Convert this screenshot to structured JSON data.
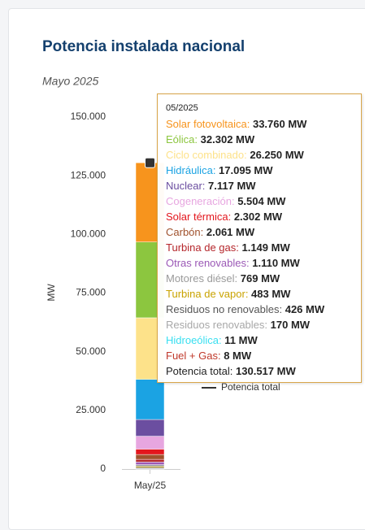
{
  "chart_data": {
    "type": "stacked_bar",
    "title": "Potencia instalada nacional",
    "subtitle": "Mayo 2025",
    "y_label": "MW",
    "categories": [
      "May/25"
    ],
    "tooltip_header": "05/2025",
    "ylim": [
      0,
      150000
    ],
    "yticks": [
      {
        "value": 0,
        "label": "0"
      },
      {
        "value": 25000,
        "label": "25.000"
      },
      {
        "value": 50000,
        "label": "50.000"
      },
      {
        "value": 75000,
        "label": "75.000"
      },
      {
        "value": 100000,
        "label": "100.000"
      },
      {
        "value": 125000,
        "label": "125.000"
      },
      {
        "value": 150000,
        "label": "150.000"
      }
    ],
    "series": [
      {
        "name": "Solar fotovoltaica",
        "color": "#f7941d",
        "values": [
          33760
        ],
        "value_labels": [
          "33.760 MW"
        ]
      },
      {
        "name": "Eólica",
        "color": "#8cc63f",
        "values": [
          32302
        ],
        "value_labels": [
          "32.302 MW"
        ]
      },
      {
        "name": "Ciclo combinado",
        "color": "#fde28a",
        "values": [
          26250
        ],
        "value_labels": [
          "26.250 MW"
        ]
      },
      {
        "name": "Hidráulica",
        "color": "#1ba3e3",
        "values": [
          17095
        ],
        "value_labels": [
          "17.095 MW"
        ]
      },
      {
        "name": "Nuclear",
        "color": "#6b4ea0",
        "values": [
          7117
        ],
        "value_labels": [
          "7.117 MW"
        ]
      },
      {
        "name": "Cogeneración",
        "color": "#e7a6e0",
        "values": [
          5504
        ],
        "value_labels": [
          "5.504 MW"
        ]
      },
      {
        "name": "Solar térmica",
        "color": "#e3161d",
        "values": [
          2302
        ],
        "value_labels": [
          "2.302 MW"
        ]
      },
      {
        "name": "Carbón",
        "color": "#a0522d",
        "values": [
          2061
        ],
        "value_labels": [
          "2.061 MW"
        ]
      },
      {
        "name": "Turbina de gas",
        "color": "#b5262b",
        "values": [
          1149
        ],
        "value_labels": [
          "1.149 MW"
        ]
      },
      {
        "name": "Otras renovables",
        "color": "#9b59b6",
        "values": [
          1110
        ],
        "value_labels": [
          "1.110 MW"
        ]
      },
      {
        "name": "Motores diésel",
        "color": "#9a9a9a",
        "values": [
          769
        ],
        "value_labels": [
          "769 MW"
        ]
      },
      {
        "name": "Turbina de vapor",
        "color": "#c9a300",
        "values": [
          483
        ],
        "value_labels": [
          "483 MW"
        ]
      },
      {
        "name": "Residuos no renovables",
        "color": "#555555",
        "values": [
          426
        ],
        "value_labels": [
          "426 MW"
        ]
      },
      {
        "name": "Residuos renovables",
        "color": "#a8a8a8",
        "values": [
          170
        ],
        "value_labels": [
          "170 MW"
        ]
      },
      {
        "name": "Hidroeólica",
        "color": "#38dff0",
        "values": [
          11
        ],
        "value_labels": [
          "11 MW"
        ]
      },
      {
        "name": "Fuel + Gas",
        "color": "#c0392b",
        "values": [
          8
        ],
        "value_labels": [
          "8 MW"
        ]
      }
    ],
    "total": {
      "name": "Potencia total",
      "color": "#333333",
      "value": 130517,
      "value_label": "130.517 MW"
    }
  }
}
